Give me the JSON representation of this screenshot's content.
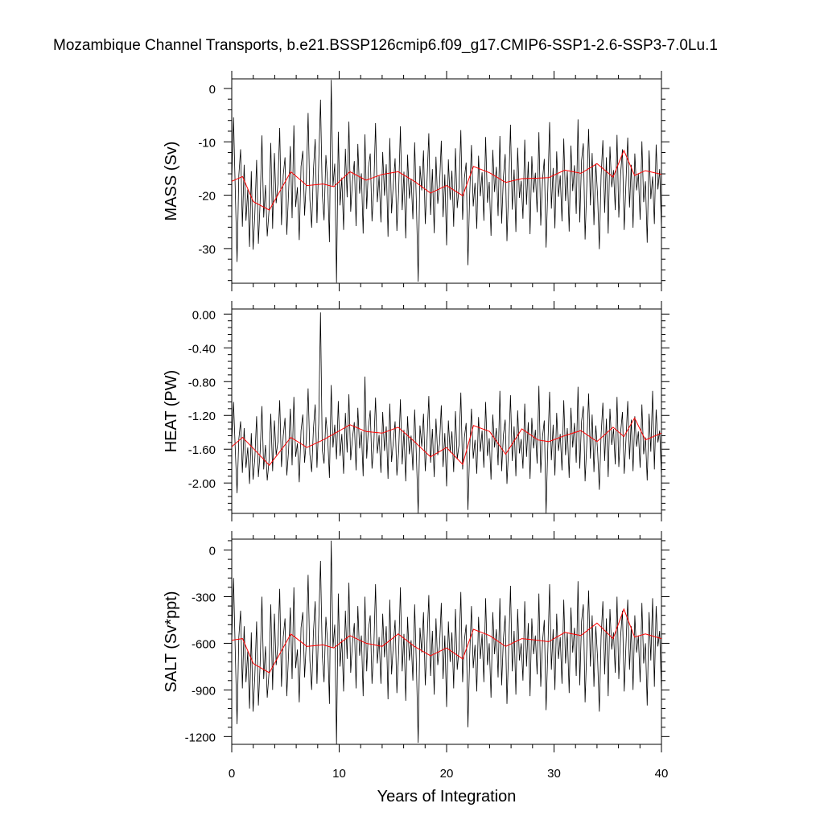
{
  "title": "Mozambique Channel Transports, b.e21.BSSP126cmip6.f09_g17.CMIP6-SSP1-2.6-SSP3-7.0Lu.1",
  "colors": {
    "series": "#000000",
    "running_mean": "#ff0000",
    "axis": "#000000"
  },
  "chart_data": [
    {
      "type": "line",
      "id": "mass",
      "title": "Mozambique Channel Transports, b.e21.BSSP126cmip6.f09_g17.CMIP6-SSP1-2.6-SSP3-7.0Lu.1",
      "xlabel": "",
      "ylabel": "MASS (Sv)",
      "xlim": [
        0,
        40
      ],
      "ylim": [
        -36.5,
        1.8
      ],
      "yticks": [
        0,
        -10,
        -20,
        -30
      ],
      "yticklabels": [
        "0",
        "-10",
        "-20",
        "-30"
      ],
      "xticks": [
        0,
        10,
        20,
        30,
        40
      ],
      "xticklabels": [],
      "grid": false,
      "series": [
        {
          "values": [
            -17.3,
            -5.4,
            -19.2,
            -32.5,
            -16.3,
            -11.4,
            -25.9,
            -14.3,
            -24.8,
            -18.9,
            -29.7,
            -15.5,
            -30.2,
            -23.6,
            -13.4,
            -29.1,
            -21.2,
            -8.8,
            -24.2,
            -18.1,
            -27.7,
            -22.9,
            -10.2,
            -26.3,
            -12.1,
            -21.5,
            -17.9,
            -7.4,
            -25.6,
            -16.2,
            -12.9,
            -27.4,
            -19.6,
            -10.8,
            -24.3,
            -6.9,
            -22.2,
            -18.5,
            -28.4,
            -14.6,
            -11.7,
            -23.8,
            -17.1,
            -4.6,
            -20.8,
            -26.1,
            -15.3,
            -9.5,
            -25.2,
            -13.8,
            -2.1,
            -19.9,
            -24.7,
            -12.5,
            -17.6,
            -28.8,
            1.6,
            -18.3,
            -14.1,
            -36.4,
            -8.1,
            -21.9,
            -16.7,
            -26.5,
            -11.3,
            -20.4,
            -6.2,
            -23.1,
            -17.4,
            -13.6,
            -25.8,
            -10.4,
            -19.7,
            -15.9,
            -27.2,
            -8.6,
            -22.6,
            -14.8,
            -12.2,
            -24.9,
            -18.7,
            -6.5,
            -21.3,
            -16.4,
            -25.1,
            -11.9,
            -20.1,
            -14.2,
            -27.8,
            -9.3,
            -23.4,
            -17.8,
            -13.1,
            -26.7,
            -19.3,
            -7.1,
            -22.8,
            -15.6,
            -28.1,
            -12.4,
            -20.6,
            -16.9,
            -24.5,
            -10.1,
            -21.7,
            -36.2,
            -14.5,
            -19.1,
            -11.6,
            -25.4,
            -17.2,
            -8.4,
            -23.7,
            -15.1,
            -27.1,
            -12.8,
            -21.6,
            -18.2,
            -9.8,
            -24.1,
            -16.1,
            -29.4,
            -13.3,
            -20.9,
            -15.4,
            -25.9,
            -11.2,
            -22.4,
            -18.6,
            -7.8,
            -24.6,
            -16.8,
            -13.9,
            -33.1,
            -19.8,
            -10.6,
            -22.1,
            -17.7,
            -26.3,
            -12.6,
            -20.2,
            -15.7,
            -24.8,
            -9.1,
            -21.4,
            -17.5,
            -27.6,
            -11.5,
            -19.4,
            -14.7,
            -23.9,
            -8.9,
            -25.3,
            -16.6,
            -12.3,
            -28.6,
            -18.4,
            -6.8,
            -22.7,
            -15.2,
            -26.9,
            -11.1,
            -20.5,
            -17.3,
            -24.4,
            -9.6,
            -21.8,
            -13.7,
            -27.3,
            -12.7,
            -19.5,
            -15.8,
            -23.2,
            -8.2,
            -25.7,
            -17.1,
            -13.2,
            -29.8,
            -18.8,
            -6.3,
            -22.5,
            -14.9,
            -26.2,
            -11.8,
            -20.3,
            -16.3,
            -24.9,
            -9.4,
            -21.1,
            -15.5,
            -26.8,
            -10.7,
            -19.2,
            -14.4,
            -23.5,
            -5.8,
            -25.1,
            -13.5,
            -10.3,
            -28.3,
            -17.9,
            -7.6,
            -21.9,
            -12.1,
            -25.6,
            -14.1,
            -19.9,
            -30.1,
            -16.4,
            -9.7,
            -23.3,
            -12.9,
            -27.2,
            -10.9,
            -18.5,
            -15.3,
            -22.8,
            -8.7,
            -24.2,
            -16.2,
            -11.4,
            -26.5,
            -17.6,
            -9.2,
            -22.3,
            -14.3,
            -26.1,
            -12.2,
            -19.1,
            -15.9,
            -24.6,
            -9.9,
            -21.3,
            -17.4,
            -28.9,
            -11.6,
            -20.7,
            -16.5,
            -25.4,
            -10.5,
            -18.9,
            -15.1,
            -26.3
          ]
        },
        {
          "name": "",
          "x": [
            0,
            1,
            2,
            3.5,
            5.5,
            7,
            8.5,
            9.5,
            11,
            12.5,
            14,
            15.5,
            17,
            18.5,
            20,
            21.5,
            22.5,
            24,
            25.5,
            27,
            28.5,
            29.5,
            31,
            32.5,
            34,
            35.5,
            36.5,
            37.5,
            38.5,
            40
          ],
          "values": [
            -17.4,
            -16.5,
            -21.2,
            -22.8,
            -15.6,
            -18.2,
            -17.9,
            -18.4,
            -15.6,
            -17.2,
            -16.1,
            -15.6,
            -17.4,
            -19.6,
            -18.2,
            -20.1,
            -14.6,
            -15.8,
            -17.6,
            -16.9,
            -16.8,
            -16.7,
            -15.3,
            -15.9,
            -14.1,
            -16.6,
            -11.6,
            -16.3,
            -15.4,
            -16.1
          ]
        }
      ]
    },
    {
      "type": "line",
      "id": "heat",
      "xlabel": "",
      "ylabel": "HEAT (PW)",
      "xlim": [
        0,
        40
      ],
      "ylim": [
        -2.36,
        0.06
      ],
      "yticks": [
        0.0,
        -0.4,
        -0.8,
        -1.2,
        -1.6,
        -2.0
      ],
      "yticklabels": [
        "0.00",
        "-0.40",
        "-0.80",
        "-1.20",
        "-1.60",
        "-2.00"
      ],
      "xticks": [
        0,
        10,
        20,
        30,
        40
      ],
      "xticklabels": [],
      "grid": false,
      "series": [
        {
          "values": [
            -1.52,
            -1.04,
            -1.61,
            -2.12,
            -1.48,
            -1.27,
            -1.88,
            -1.35,
            -1.82,
            -1.58,
            -2.01,
            -1.41,
            -1.96,
            -1.71,
            -1.21,
            -1.93,
            -1.63,
            -1.09,
            -1.84,
            -1.55,
            -1.97,
            -1.74,
            -1.18,
            -1.86,
            -1.26,
            -1.67,
            -1.51,
            -1.02,
            -1.81,
            -1.44,
            -1.23,
            -1.91,
            -1.62,
            -1.12,
            -1.79,
            -0.98,
            -1.69,
            -1.53,
            -1.99,
            -1.38,
            -1.19,
            -1.76,
            -1.49,
            -0.88,
            -1.66,
            -1.87,
            -1.36,
            -1.07,
            -1.82,
            -1.29,
            0.02,
            -1.61,
            -1.77,
            -1.22,
            -1.46,
            -1.94,
            -0.84,
            -1.58,
            -1.31,
            -1.72,
            -1.03,
            -1.68,
            -1.42,
            -1.89,
            -1.17,
            -1.64,
            -0.95,
            -1.73,
            -1.47,
            -1.28,
            -1.85,
            -1.11,
            -1.59,
            -1.39,
            -1.92,
            -0.74,
            -1.71,
            -1.34,
            -1.14,
            -1.83,
            -1.56,
            -0.99,
            -1.65,
            -1.43,
            -1.88,
            -1.16,
            -1.62,
            -1.33,
            -1.95,
            -1.06,
            -1.75,
            -1.51,
            -1.27,
            -1.91,
            -1.63,
            -1.01,
            -1.78,
            -1.37,
            -1.98,
            -1.21,
            -1.66,
            -1.44,
            -1.85,
            -1.13,
            -1.69,
            -2.36,
            -1.32,
            -1.57,
            -1.18,
            -1.86,
            -1.48,
            -0.97,
            -1.76,
            -1.36,
            -1.93,
            -1.24,
            -1.67,
            -1.54,
            -1.08,
            -1.81,
            -1.41,
            -2.04,
            -1.26,
            -1.64,
            -1.39,
            -1.87,
            -1.15,
            -1.72,
            -1.55,
            -0.93,
            -1.84,
            -1.46,
            -1.29,
            -2.32,
            -1.61,
            -1.12,
            -1.71,
            -1.49,
            -1.89,
            -1.22,
            -1.63,
            -1.38,
            -1.82,
            -1.04,
            -1.68,
            -1.47,
            -1.96,
            -1.19,
            -1.58,
            -1.35,
            -1.79,
            -0.91,
            -1.86,
            -1.43,
            -1.25,
            -2.01,
            -1.57,
            -0.96,
            -1.74,
            -1.33,
            -1.92,
            -1.14,
            -1.65,
            -1.48,
            -1.83,
            -1.06,
            -1.69,
            -1.28,
            -1.95,
            -1.23,
            -1.59,
            -1.37,
            -1.77,
            -0.85,
            -1.88,
            -1.45,
            -1.26,
            -2.36,
            -1.56,
            -0.92,
            -1.73,
            -1.31,
            -1.91,
            -1.17,
            -1.62,
            -1.42,
            -1.85,
            -1.02,
            -1.67,
            -1.35,
            -1.94,
            -1.11,
            -1.58,
            -1.29,
            -1.76,
            -0.86,
            -1.83,
            -1.27,
            -1.09,
            -1.98,
            -1.52,
            -0.94,
            -1.71,
            -1.19,
            -1.87,
            -1.32,
            -1.61,
            -2.08,
            -1.43,
            -1.05,
            -1.74,
            -1.24,
            -1.93,
            -1.12,
            -1.55,
            -1.36,
            -1.78,
            -0.98,
            -1.81,
            -1.41,
            -1.16,
            -1.89,
            -1.49,
            -1.03,
            -1.72,
            -1.25,
            -1.86,
            -1.21,
            -1.57,
            -1.39,
            -1.82,
            -1.07,
            -1.66,
            -1.46,
            -1.97,
            -1.18,
            -1.63,
            -0.91,
            -1.84,
            -1.13,
            -1.52,
            -1.38,
            -1.92
          ]
        },
        {
          "name": "",
          "x": [
            0,
            1,
            2,
            3.5,
            5.5,
            7,
            8.5,
            9.5,
            11,
            12.5,
            14,
            15.5,
            17,
            18.5,
            20,
            21.5,
            22.5,
            24,
            25.5,
            27,
            28.5,
            29.5,
            31,
            32.5,
            34,
            35.5,
            36.5,
            37.5,
            38.5,
            40
          ],
          "values": [
            -1.57,
            -1.46,
            -1.59,
            -1.79,
            -1.46,
            -1.58,
            -1.49,
            -1.42,
            -1.31,
            -1.39,
            -1.41,
            -1.34,
            -1.51,
            -1.69,
            -1.58,
            -1.78,
            -1.32,
            -1.39,
            -1.66,
            -1.36,
            -1.49,
            -1.51,
            -1.44,
            -1.38,
            -1.51,
            -1.34,
            -1.45,
            -1.23,
            -1.49,
            -1.41
          ]
        }
      ]
    },
    {
      "type": "line",
      "id": "salt",
      "xlabel": "Years of Integration",
      "ylabel": "SALT (Sv*ppt)",
      "xlim": [
        0,
        40
      ],
      "xticks": [
        0,
        10,
        20,
        30,
        40
      ],
      "xticklabels": [
        "0",
        "10",
        "20",
        "30",
        "40"
      ],
      "ylim": [
        -1250,
        70
      ],
      "yticks": [
        0,
        -300,
        -600,
        -900,
        -1200
      ],
      "yticklabels": [
        "0",
        "-300",
        "-600",
        "-900",
        "-1200"
      ],
      "grid": false,
      "series": [
        {
          "values": [
            -590,
            -180,
            -660,
            -1120,
            -560,
            -390,
            -890,
            -490,
            -850,
            -650,
            -1020,
            -530,
            -1040,
            -810,
            -460,
            -1000,
            -730,
            -300,
            -830,
            -620,
            -950,
            -790,
            -350,
            -900,
            -410,
            -740,
            -610,
            -250,
            -880,
            -560,
            -440,
            -940,
            -670,
            -370,
            -830,
            -240,
            -760,
            -640,
            -980,
            -500,
            -400,
            -820,
            -590,
            -160,
            -710,
            -900,
            -530,
            -330,
            -860,
            -470,
            -70,
            -680,
            -850,
            -430,
            -600,
            -990,
            60,
            -630,
            -480,
            -1250,
            -280,
            -750,
            -570,
            -910,
            -390,
            -700,
            -210,
            -790,
            -600,
            -470,
            -890,
            -360,
            -680,
            -550,
            -940,
            -300,
            -780,
            -510,
            -420,
            -860,
            -640,
            -220,
            -730,
            -560,
            -860,
            -410,
            -690,
            -490,
            -960,
            -320,
            -800,
            -610,
            -450,
            -920,
            -660,
            -240,
            -780,
            -540,
            -970,
            -430,
            -710,
            -580,
            -840,
            -350,
            -750,
            -1240,
            -500,
            -660,
            -400,
            -870,
            -590,
            -290,
            -810,
            -520,
            -930,
            -440,
            -740,
            -620,
            -340,
            -830,
            -550,
            -1010,
            -460,
            -720,
            -530,
            -890,
            -380,
            -770,
            -640,
            -270,
            -850,
            -580,
            -480,
            -1140,
            -680,
            -360,
            -760,
            -610,
            -910,
            -430,
            -700,
            -540,
            -850,
            -310,
            -740,
            -600,
            -950,
            -400,
            -670,
            -510,
            -820,
            -310,
            -870,
            -570,
            -420,
            -990,
            -630,
            -230,
            -780,
            -520,
            -930,
            -380,
            -710,
            -600,
            -840,
            -330,
            -750,
            -470,
            -940,
            -440,
            -670,
            -550,
            -800,
            -280,
            -880,
            -590,
            -450,
            -1030,
            -650,
            -220,
            -770,
            -510,
            -900,
            -410,
            -700,
            -560,
            -860,
            -320,
            -730,
            -530,
            -920,
            -370,
            -660,
            -500,
            -810,
            -200,
            -870,
            -460,
            -350,
            -980,
            -620,
            -260,
            -750,
            -420,
            -880,
            -490,
            -690,
            -1040,
            -560,
            -330,
            -800,
            -440,
            -940,
            -380,
            -640,
            -530,
            -790,
            -300,
            -830,
            -560,
            -390,
            -910,
            -610,
            -320,
            -770,
            -490,
            -900,
            -420,
            -660,
            -550,
            -850,
            -340,
            -730,
            -600,
            -1000,
            -400,
            -710,
            -310,
            -880,
            -360,
            -620,
            -520,
            -910
          ]
        },
        {
          "name": "",
          "x": [
            0,
            1,
            2,
            3.5,
            5.5,
            7,
            8.5,
            9.5,
            11,
            12.5,
            14,
            15.5,
            17,
            18.5,
            20,
            21.5,
            22.5,
            24,
            25.5,
            27,
            28.5,
            29.5,
            31,
            32.5,
            34,
            35.5,
            36.5,
            37.5,
            38.5,
            40
          ],
          "values": [
            -580,
            -570,
            -730,
            -790,
            -540,
            -620,
            -610,
            -630,
            -550,
            -600,
            -620,
            -540,
            -620,
            -680,
            -630,
            -700,
            -510,
            -550,
            -620,
            -570,
            -580,
            -590,
            -530,
            -550,
            -470,
            -570,
            -380,
            -560,
            -540,
            -570
          ]
        }
      ]
    }
  ]
}
